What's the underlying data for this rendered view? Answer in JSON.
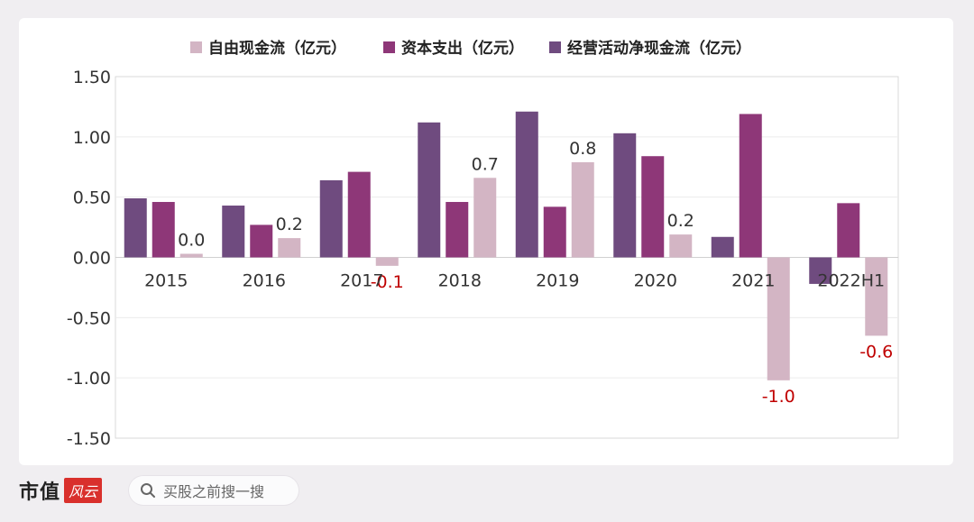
{
  "chart_data": {
    "type": "bar",
    "title": "",
    "xlabel": "",
    "ylabel": "",
    "ylim": [
      -1.5,
      1.5
    ],
    "yticks": [
      1.5,
      1.0,
      0.5,
      0.0,
      -0.5,
      -1.0,
      -1.5
    ],
    "ytick_labels": [
      "1.50",
      "1.00",
      "0.50",
      "0.00",
      "-0.50",
      "-1.00",
      "-1.50"
    ],
    "categories": [
      "2015",
      "2016",
      "2017",
      "2018",
      "2019",
      "2020",
      "2021",
      "2022H1"
    ],
    "series": [
      {
        "name": "经营活动净现金流（亿元）",
        "color": "#6f4b7f",
        "values": [
          0.49,
          0.43,
          0.64,
          1.12,
          1.21,
          1.03,
          0.17,
          -0.22
        ]
      },
      {
        "name": "资本支出（亿元）",
        "color": "#8e3778",
        "values": [
          0.46,
          0.27,
          0.71,
          0.46,
          0.42,
          0.84,
          1.19,
          0.45
        ]
      },
      {
        "name": "自由现金流（亿元）",
        "color": "#d3b5c4",
        "values": [
          0.03,
          0.16,
          -0.07,
          0.66,
          0.79,
          0.19,
          -1.02,
          -0.65
        ]
      }
    ],
    "data_labels": [
      "0.0",
      "0.2",
      "-0.1",
      "0.7",
      "0.8",
      "0.2",
      "-1.0",
      "-0.6"
    ],
    "negative_label_color": "#c00000",
    "legend": {
      "position": "top",
      "order": [
        "自由现金流（亿元）",
        "资本支出（亿元）",
        "经营活动净现金流（亿元）"
      ]
    }
  },
  "footer": {
    "brand": "市值",
    "brand_stamp": "风云",
    "search_placeholder": "买股之前搜一搜"
  }
}
